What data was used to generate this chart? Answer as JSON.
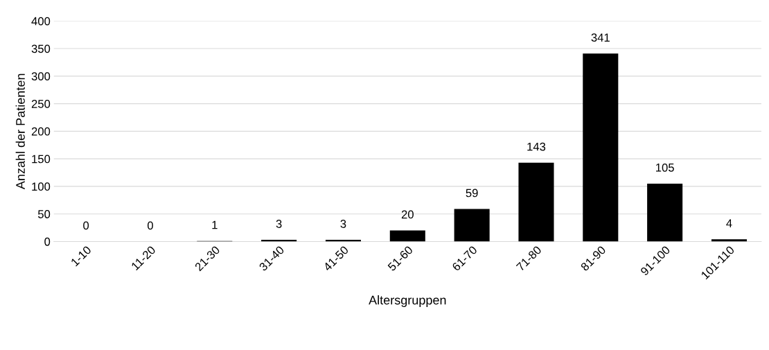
{
  "chart_data": {
    "type": "bar",
    "xlabel": "Altersgruppen",
    "ylabel": "Anzahl der Patienten",
    "categories": [
      "1-10",
      "11-20",
      "21-30",
      "31-40",
      "41-50",
      "51-60",
      "61-70",
      "71-80",
      "81-90",
      "91-100",
      "101-110"
    ],
    "values": [
      0,
      0,
      1,
      3,
      3,
      20,
      59,
      143,
      341,
      105,
      4
    ],
    "color": "#000000",
    "ylim": [
      0,
      400
    ],
    "yticks": [
      0,
      50,
      100,
      150,
      200,
      250,
      300,
      350,
      400
    ],
    "grid": "y",
    "data_labels": true
  }
}
